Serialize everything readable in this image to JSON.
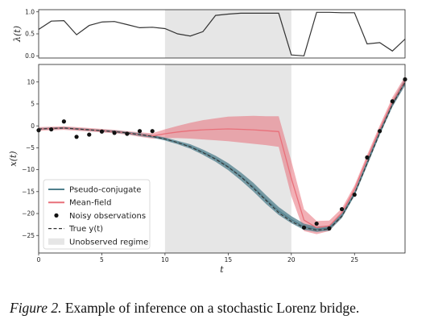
{
  "chart_data": [
    {
      "type": "line",
      "id": "lambda-panel",
      "ylabel": "λ(t)",
      "xlim": [
        0,
        29
      ],
      "ylim": [
        -0.05,
        1.05
      ],
      "yticks": [
        "0.0",
        "0.5",
        "1.0"
      ],
      "yticks_values": [
        0.0,
        0.5,
        1.0
      ],
      "x": [
        0,
        1,
        2,
        3,
        4,
        5,
        6,
        7,
        8,
        9,
        10,
        11,
        12,
        13,
        14,
        15,
        16,
        17,
        18,
        19,
        20,
        21,
        22,
        23,
        24,
        25,
        26,
        27,
        28,
        29
      ],
      "values": [
        0.6,
        0.79,
        0.8,
        0.48,
        0.69,
        0.77,
        0.78,
        0.71,
        0.64,
        0.65,
        0.62,
        0.5,
        0.45,
        0.55,
        0.92,
        0.95,
        0.97,
        0.97,
        0.97,
        0.97,
        0.02,
        0.0,
        0.99,
        0.99,
        0.98,
        0.98,
        0.27,
        0.3,
        0.11,
        0.38
      ],
      "shaded_region": [
        10,
        20
      ]
    },
    {
      "type": "line",
      "id": "x-panel",
      "xlabel": "t",
      "ylabel": "x(t)",
      "xlim": [
        0,
        29
      ],
      "ylim": [
        -29,
        14
      ],
      "xticks": [
        "0",
        "5",
        "10",
        "15",
        "20",
        "25"
      ],
      "xticks_values": [
        0,
        5,
        10,
        15,
        20,
        25
      ],
      "yticks": [
        "10",
        "5",
        "0",
        "−5",
        "−10",
        "−15",
        "−20",
        "−25"
      ],
      "yticks_values": [
        10,
        5,
        0,
        -5,
        -10,
        -15,
        -20,
        -25
      ],
      "shaded_region": [
        10,
        20
      ],
      "x": [
        0,
        1,
        2,
        3,
        4,
        5,
        6,
        7,
        8,
        9,
        10,
        11,
        12,
        13,
        14,
        15,
        16,
        17,
        18,
        19,
        20,
        21,
        22,
        23,
        24,
        25,
        26,
        27,
        28,
        29
      ],
      "series": [
        {
          "name": "Pseudo-conjugate",
          "color": "#4f7f8c",
          "values": [
            -0.7,
            -0.6,
            -0.5,
            -0.7,
            -0.9,
            -1.1,
            -1.3,
            -1.6,
            -2.0,
            -2.4,
            -3.0,
            -3.8,
            -4.7,
            -6.0,
            -7.5,
            -9.3,
            -11.5,
            -14.0,
            -16.8,
            -19.4,
            -21.4,
            -23.0,
            -23.6,
            -23.3,
            -20.5,
            -15.5,
            -8.5,
            -1.5,
            5.0,
            10.0
          ],
          "band": [
            0.2,
            0.2,
            0.2,
            0.2,
            0.2,
            0.2,
            0.25,
            0.25,
            0.3,
            0.3,
            0.35,
            0.4,
            0.5,
            0.6,
            0.7,
            0.8,
            0.9,
            1.0,
            1.0,
            0.9,
            0.8,
            0.7,
            0.6,
            0.6,
            0.5,
            0.5,
            0.6,
            0.6,
            0.7,
            0.8
          ]
        },
        {
          "name": "Mean-field",
          "color": "#e8707a",
          "values": [
            -0.7,
            -0.6,
            -0.5,
            -0.7,
            -0.9,
            -1.1,
            -1.3,
            -1.6,
            -2.0,
            -2.3,
            -1.8,
            -1.4,
            -1.1,
            -0.9,
            -0.8,
            -0.7,
            -0.8,
            -0.9,
            -1.1,
            -1.3,
            -12.0,
            -21.5,
            -23.2,
            -22.8,
            -19.8,
            -14.5,
            -7.5,
            -0.8,
            5.5,
            10.3
          ],
          "band": [
            0.4,
            0.4,
            0.4,
            0.4,
            0.4,
            0.4,
            0.4,
            0.4,
            0.5,
            0.6,
            1.0,
            1.4,
            1.8,
            2.2,
            2.5,
            2.8,
            3.0,
            3.2,
            3.3,
            3.5,
            4.0,
            2.5,
            1.5,
            1.2,
            1.0,
            0.9,
            0.9,
            0.9,
            1.0,
            1.0
          ]
        },
        {
          "name": "True y(t)",
          "color": "#333333",
          "dashed": true,
          "values": [
            -0.7,
            -0.6,
            -0.5,
            -0.7,
            -0.9,
            -1.1,
            -1.3,
            -1.6,
            -2.0,
            -2.4,
            -3.0,
            -3.8,
            -4.8,
            -6.1,
            -7.6,
            -9.4,
            -11.6,
            -14.2,
            -17.0,
            -19.8,
            -21.8,
            -23.2,
            -23.8,
            -23.5,
            -20.6,
            -15.6,
            -8.6,
            -1.7,
            4.8,
            10.0
          ]
        }
      ],
      "observations": {
        "name": "Noisy observations",
        "x": [
          0,
          1,
          2,
          3,
          4,
          5,
          6,
          7,
          8,
          9,
          21,
          22,
          23,
          24,
          25,
          26,
          27,
          28,
          29
        ],
        "y": [
          -1.0,
          -0.8,
          1.0,
          -2.5,
          -2.0,
          -1.3,
          -1.6,
          -1.8,
          -1.2,
          -1.2,
          -23.2,
          -22.3,
          -23.4,
          -19.0,
          -15.7,
          -7.2,
          -1.2,
          5.6,
          10.6
        ]
      },
      "legend": {
        "placement": "lower-left",
        "entries": [
          {
            "label": "Pseudo-conjugate",
            "kind": "line",
            "color": "#4f7f8c"
          },
          {
            "label": "Mean-field",
            "kind": "line",
            "color": "#e8707a"
          },
          {
            "label": "Noisy observations",
            "kind": "dot",
            "color": "#111111"
          },
          {
            "label": "True y(t)",
            "kind": "dashed",
            "color": "#333333"
          },
          {
            "label": "Unobserved regime",
            "kind": "patch",
            "color": "#e6e6e6"
          }
        ]
      }
    }
  ],
  "caption": {
    "label": "Figure 2.",
    "text": "Example of inference on a stochastic Lorenz bridge."
  }
}
